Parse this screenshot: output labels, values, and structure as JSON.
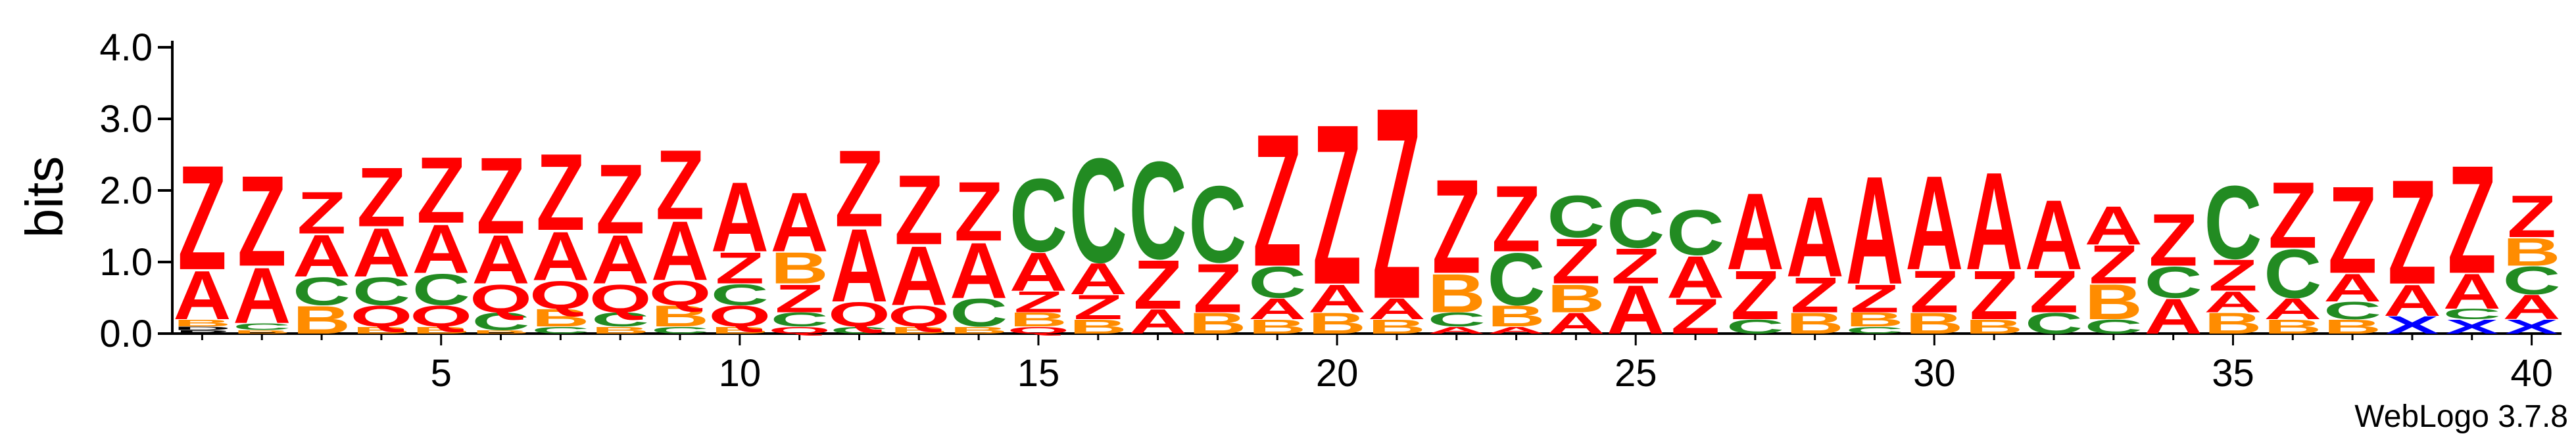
{
  "chart_data": {
    "type": "sequence-logo",
    "ylabel": "bits",
    "ylim": [
      0,
      4.0
    ],
    "y_ticks": [
      "0.0",
      "1.0",
      "2.0",
      "3.0",
      "4.0"
    ],
    "x_ticks": [
      5,
      10,
      15,
      20,
      25,
      30,
      35,
      40
    ],
    "positions_count": 40,
    "colors": {
      "Z": "#ff0000",
      "A": "#ff0000",
      "C": "#228b22",
      "Q": "#ff0000",
      "B": "#ff8c00",
      "X": "#0000ff"
    },
    "stacks": [
      [
        [
          "P",
          0.05
        ],
        [
          "D",
          0.05
        ],
        [
          "B",
          0.1
        ],
        [
          "A",
          0.7
        ],
        [
          "Z",
          1.5
        ]
      ],
      [
        [
          "B",
          0.05
        ],
        [
          "C",
          0.1
        ],
        [
          "A",
          0.8
        ],
        [
          "Z",
          1.3
        ]
      ],
      [
        [
          "B",
          0.4
        ],
        [
          "C",
          0.4
        ],
        [
          "A",
          0.6
        ],
        [
          "Z",
          0.6
        ]
      ],
      [
        [
          "B",
          0.1
        ],
        [
          "Q",
          0.3
        ],
        [
          "C",
          0.4
        ],
        [
          "A",
          0.7
        ],
        [
          "Z",
          0.85
        ]
      ],
      [
        [
          "B",
          0.1
        ],
        [
          "Q",
          0.3
        ],
        [
          "C",
          0.45
        ],
        [
          "A",
          0.7
        ],
        [
          "Z",
          0.95
        ]
      ],
      [
        [
          "B",
          0.05
        ],
        [
          "C",
          0.25
        ],
        [
          "Q",
          0.4
        ],
        [
          "A",
          0.7
        ],
        [
          "Z",
          1.1
        ]
      ],
      [
        [
          "C",
          0.1
        ],
        [
          "B",
          0.25
        ],
        [
          "Q",
          0.4
        ],
        [
          "A",
          0.7
        ],
        [
          "Z",
          1.1
        ]
      ],
      [
        [
          "B",
          0.1
        ],
        [
          "C",
          0.2
        ],
        [
          "Q",
          0.4
        ],
        [
          "A",
          0.7
        ],
        [
          "Z",
          1.0
        ]
      ],
      [
        [
          "C",
          0.1
        ],
        [
          "B",
          0.3
        ],
        [
          "Q",
          0.35
        ],
        [
          "A",
          0.85
        ],
        [
          "Z",
          1.0
        ]
      ],
      [
        [
          "B",
          0.1
        ],
        [
          "Q",
          0.3
        ],
        [
          "C",
          0.3
        ],
        [
          "Z",
          0.45
        ],
        [
          "A",
          1.0
        ]
      ],
      [
        [
          "Q",
          0.1
        ],
        [
          "C",
          0.2
        ],
        [
          "Z",
          0.4
        ],
        [
          "B",
          0.45
        ],
        [
          "A",
          0.85
        ]
      ],
      [
        [
          "C",
          0.1
        ],
        [
          "Q",
          0.35
        ],
        [
          "A",
          1.05
        ],
        [
          "Z",
          1.1
        ]
      ],
      [
        [
          "B",
          0.1
        ],
        [
          "Q",
          0.3
        ],
        [
          "A",
          0.85
        ],
        [
          "Z",
          1.0
        ]
      ],
      [
        [
          "B",
          0.1
        ],
        [
          "C",
          0.4
        ],
        [
          "A",
          0.8
        ],
        [
          "Z",
          0.85
        ]
      ],
      [
        [
          "Q",
          0.1
        ],
        [
          "B",
          0.2
        ],
        [
          "Z",
          0.3
        ],
        [
          "A",
          0.55
        ],
        [
          "C",
          1.05
        ]
      ],
      [
        [
          "B",
          0.2
        ],
        [
          "Z",
          0.35
        ],
        [
          "A",
          0.45
        ],
        [
          "C",
          1.5
        ]
      ],
      [
        [
          "A",
          0.35
        ],
        [
          "Z",
          0.7
        ],
        [
          "C",
          1.4
        ]
      ],
      [
        [
          "B",
          0.3
        ],
        [
          "Z",
          0.7
        ],
        [
          "C",
          1.1
        ]
      ],
      [
        [
          "B",
          0.2
        ],
        [
          "A",
          0.3
        ],
        [
          "C",
          0.45
        ],
        [
          "Z",
          1.9
        ]
      ],
      [
        [
          "B",
          0.3
        ],
        [
          "A",
          0.4
        ],
        [
          "Z",
          2.3
        ]
      ],
      [
        [
          "B",
          0.2
        ],
        [
          "A",
          0.3
        ],
        [
          "Z",
          2.75
        ]
      ],
      [
        [
          "A",
          0.1
        ],
        [
          "C",
          0.2
        ],
        [
          "B",
          0.55
        ],
        [
          "Z",
          1.35
        ]
      ],
      [
        [
          "A",
          0.1
        ],
        [
          "B",
          0.3
        ],
        [
          "C",
          0.75
        ],
        [
          "Z",
          0.95
        ]
      ],
      [
        [
          "A",
          0.3
        ],
        [
          "B",
          0.4
        ],
        [
          "Z",
          0.65
        ],
        [
          "C",
          0.6
        ]
      ],
      [
        [
          "A",
          0.7
        ],
        [
          "Z",
          0.5
        ],
        [
          "C",
          0.7
        ]
      ],
      [
        [
          "Z",
          0.5
        ],
        [
          "A",
          0.6
        ],
        [
          "C",
          0.65
        ]
      ],
      [
        [
          "C",
          0.2
        ],
        [
          "Z",
          0.7
        ],
        [
          "A",
          1.1
        ]
      ],
      [
        [
          "B",
          0.3
        ],
        [
          "Z",
          0.5
        ],
        [
          "A",
          1.15
        ]
      ],
      [
        [
          "C",
          0.1
        ],
        [
          "B",
          0.2
        ],
        [
          "Z",
          0.4
        ],
        [
          "A",
          1.55
        ]
      ],
      [
        [
          "B",
          0.3
        ],
        [
          "Z",
          0.6
        ],
        [
          "A",
          1.35
        ]
      ],
      [
        [
          "B",
          0.2
        ],
        [
          "Z",
          0.7
        ],
        [
          "A",
          1.4
        ]
      ],
      [
        [
          "C",
          0.3
        ],
        [
          "Z",
          0.6
        ],
        [
          "A",
          1.0
        ]
      ],
      [
        [
          "C",
          0.2
        ],
        [
          "B",
          0.5
        ],
        [
          "Z",
          0.55
        ],
        [
          "A",
          0.55
        ]
      ],
      [
        [
          "A",
          0.5
        ],
        [
          "C",
          0.45
        ],
        [
          "Z",
          0.75
        ]
      ],
      [
        [
          "B",
          0.3
        ],
        [
          "A",
          0.3
        ],
        [
          "Z",
          0.45
        ],
        [
          "C",
          1.05
        ]
      ],
      [
        [
          "B",
          0.2
        ],
        [
          "A",
          0.3
        ],
        [
          "C",
          0.7
        ],
        [
          "Z",
          0.95
        ]
      ],
      [
        [
          "B",
          0.2
        ],
        [
          "C",
          0.25
        ],
        [
          "A",
          0.4
        ],
        [
          "Z",
          1.25
        ]
      ],
      [
        [
          "X",
          0.25
        ],
        [
          "A",
          0.45
        ],
        [
          "Z",
          1.5
        ]
      ],
      [
        [
          "X",
          0.2
        ],
        [
          "C",
          0.15
        ],
        [
          "A",
          0.5
        ],
        [
          "Z",
          1.55
        ]
      ],
      [
        [
          "X",
          0.2
        ],
        [
          "A",
          0.35
        ],
        [
          "C",
          0.4
        ],
        [
          "B",
          0.4
        ],
        [
          "Z",
          0.6
        ]
      ]
    ]
  },
  "footer": {
    "label": "WebLogo 3.7.8"
  }
}
